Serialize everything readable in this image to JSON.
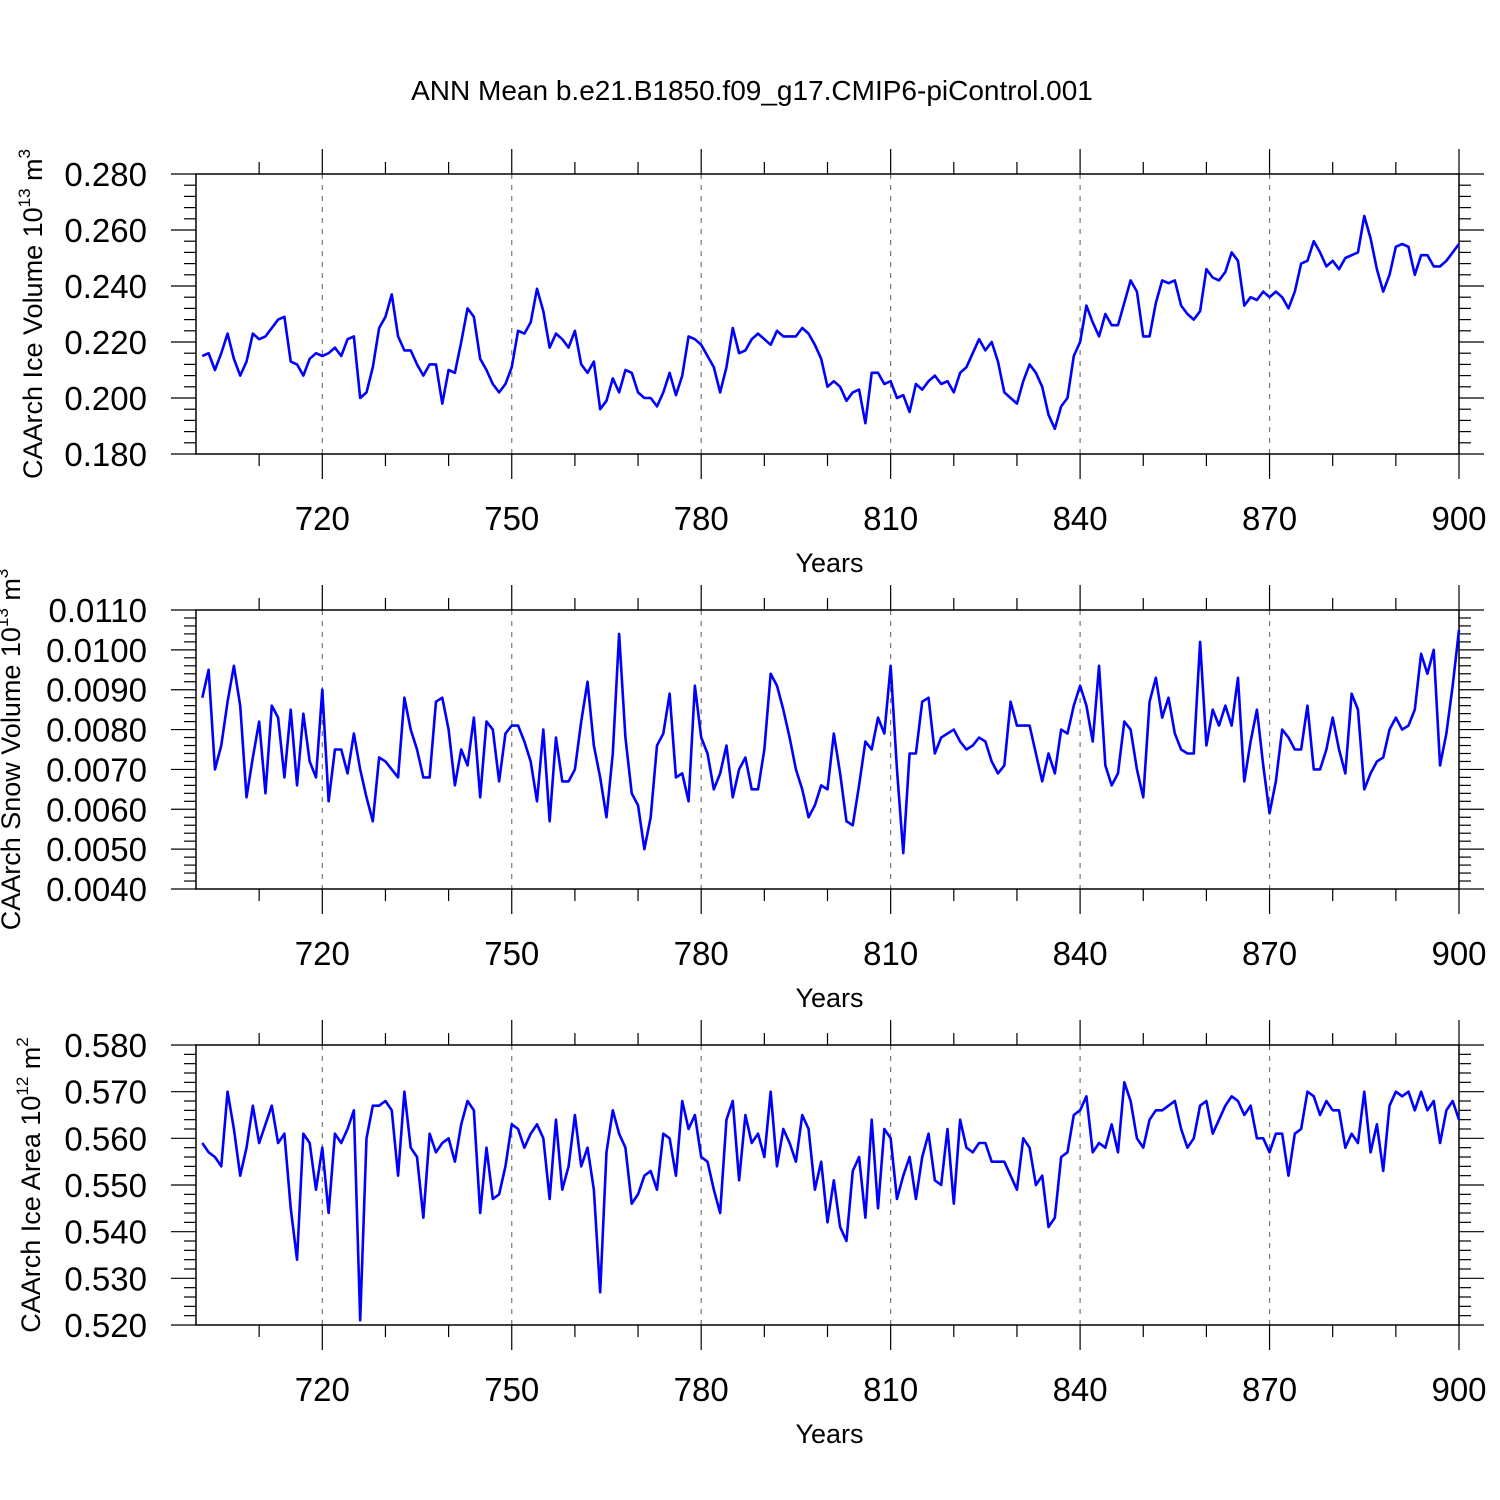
{
  "figure": {
    "title": "ANN Mean b.e21.B1850.f09_g17.CMIP6-piControl.001",
    "line_color": "#0000ff"
  },
  "chart_data": [
    {
      "type": "line",
      "id": "ice-volume",
      "ylabel": {
        "text": "CAArch Ice Volume 10",
        "exp": "13",
        "unit": " m",
        "unit_exp": "3"
      },
      "xlabel": "Years",
      "xlim": [
        700,
        900
      ],
      "ylim": [
        0.18,
        0.28
      ],
      "xticks": [
        720,
        750,
        780,
        810,
        840,
        870,
        900
      ],
      "xtick_labels": [
        "720",
        "750",
        "780",
        "810",
        "840",
        "870",
        "900"
      ],
      "yticks": [
        0.18,
        0.2,
        0.22,
        0.24,
        0.26,
        0.28
      ],
      "ytick_labels": [
        "0.180",
        "0.200",
        "0.220",
        "0.240",
        "0.260",
        "0.280"
      ],
      "grid_x": true,
      "x_start": 701,
      "values": [
        0.215,
        0.216,
        0.21,
        0.216,
        0.223,
        0.214,
        0.208,
        0.213,
        0.223,
        0.221,
        0.222,
        0.225,
        0.228,
        0.229,
        0.213,
        0.212,
        0.208,
        0.214,
        0.216,
        0.215,
        0.216,
        0.218,
        0.215,
        0.221,
        0.222,
        0.2,
        0.202,
        0.211,
        0.225,
        0.229,
        0.237,
        0.222,
        0.217,
        0.217,
        0.212,
        0.208,
        0.212,
        0.212,
        0.198,
        0.21,
        0.209,
        0.22,
        0.232,
        0.229,
        0.214,
        0.21,
        0.205,
        0.202,
        0.205,
        0.211,
        0.224,
        0.223,
        0.227,
        0.239,
        0.231,
        0.218,
        0.223,
        0.221,
        0.218,
        0.224,
        0.212,
        0.209,
        0.213,
        0.196,
        0.199,
        0.207,
        0.202,
        0.21,
        0.209,
        0.202,
        0.2,
        0.2,
        0.197,
        0.202,
        0.209,
        0.201,
        0.208,
        0.222,
        0.221,
        0.219,
        0.215,
        0.211,
        0.202,
        0.211,
        0.225,
        0.216,
        0.217,
        0.221,
        0.223,
        0.221,
        0.219,
        0.224,
        0.222,
        0.222,
        0.222,
        0.225,
        0.223,
        0.219,
        0.214,
        0.204,
        0.206,
        0.204,
        0.199,
        0.202,
        0.203,
        0.191,
        0.209,
        0.209,
        0.205,
        0.206,
        0.2,
        0.201,
        0.195,
        0.205,
        0.203,
        0.206,
        0.208,
        0.205,
        0.206,
        0.202,
        0.209,
        0.211,
        0.216,
        0.221,
        0.217,
        0.22,
        0.213,
        0.202,
        0.2,
        0.198,
        0.206,
        0.212,
        0.209,
        0.204,
        0.194,
        0.189,
        0.197,
        0.2,
        0.215,
        0.22,
        0.233,
        0.227,
        0.222,
        0.23,
        0.226,
        0.226,
        0.234,
        0.242,
        0.238,
        0.222,
        0.222,
        0.234,
        0.242,
        0.241,
        0.242,
        0.233,
        0.23,
        0.228,
        0.231,
        0.246,
        0.243,
        0.242,
        0.245,
        0.252,
        0.249,
        0.233,
        0.236,
        0.235,
        0.238,
        0.236,
        0.238,
        0.236,
        0.232,
        0.238,
        0.248,
        0.249,
        0.256,
        0.252,
        0.247,
        0.249,
        0.246,
        0.25,
        0.251,
        0.252,
        0.265,
        0.257,
        0.246,
        0.238,
        0.244,
        0.254,
        0.255,
        0.254,
        0.244,
        0.251,
        0.251,
        0.247,
        0.247,
        0.249,
        0.252,
        0.255
      ]
    },
    {
      "type": "line",
      "id": "snow-volume",
      "ylabel": {
        "text": "CAArch Snow Volume 10",
        "exp": "13",
        "unit": " m",
        "unit_exp": "3"
      },
      "xlabel": "Years",
      "xlim": [
        700,
        900
      ],
      "ylim": [
        0.004,
        0.011
      ],
      "xticks": [
        720,
        750,
        780,
        810,
        840,
        870,
        900
      ],
      "xtick_labels": [
        "720",
        "750",
        "780",
        "810",
        "840",
        "870",
        "900"
      ],
      "yticks": [
        0.004,
        0.005,
        0.006,
        0.007,
        0.008,
        0.009,
        0.01,
        0.011
      ],
      "ytick_labels": [
        "0.0040",
        "0.0050",
        "0.0060",
        "0.0070",
        "0.0080",
        "0.0090",
        "0.0100",
        "0.0110"
      ],
      "grid_x": true,
      "x_start": 701,
      "values": [
        0.0088,
        0.0095,
        0.007,
        0.0076,
        0.0087,
        0.0096,
        0.0086,
        0.0063,
        0.0073,
        0.0082,
        0.0064,
        0.0086,
        0.0083,
        0.0068,
        0.0085,
        0.0066,
        0.0084,
        0.0072,
        0.0068,
        0.009,
        0.0062,
        0.0075,
        0.0075,
        0.0069,
        0.0079,
        0.007,
        0.0063,
        0.0057,
        0.0073,
        0.0072,
        0.007,
        0.0068,
        0.0088,
        0.008,
        0.0075,
        0.0068,
        0.0068,
        0.0087,
        0.0088,
        0.008,
        0.0066,
        0.0075,
        0.0071,
        0.0083,
        0.0063,
        0.0082,
        0.008,
        0.0067,
        0.0079,
        0.0081,
        0.0081,
        0.0077,
        0.0072,
        0.0062,
        0.008,
        0.0057,
        0.0078,
        0.0067,
        0.0067,
        0.007,
        0.0082,
        0.0092,
        0.0076,
        0.0068,
        0.0058,
        0.0074,
        0.0104,
        0.0078,
        0.0064,
        0.0061,
        0.005,
        0.0058,
        0.0076,
        0.0079,
        0.0089,
        0.0068,
        0.0069,
        0.0062,
        0.0091,
        0.0078,
        0.0074,
        0.0065,
        0.0069,
        0.0076,
        0.0063,
        0.007,
        0.0073,
        0.0065,
        0.0065,
        0.0075,
        0.0094,
        0.0091,
        0.0085,
        0.0078,
        0.007,
        0.0065,
        0.0058,
        0.0061,
        0.0066,
        0.0065,
        0.0079,
        0.0069,
        0.0057,
        0.0056,
        0.0066,
        0.0077,
        0.0075,
        0.0083,
        0.0079,
        0.0096,
        0.007,
        0.0049,
        0.0074,
        0.0074,
        0.0087,
        0.0088,
        0.0074,
        0.0078,
        0.0079,
        0.008,
        0.0077,
        0.0075,
        0.0076,
        0.0078,
        0.0077,
        0.0072,
        0.0069,
        0.0071,
        0.0087,
        0.0081,
        0.0081,
        0.0081,
        0.0074,
        0.0067,
        0.0074,
        0.0069,
        0.008,
        0.0079,
        0.0086,
        0.0091,
        0.0086,
        0.0077,
        0.0096,
        0.0071,
        0.0066,
        0.0069,
        0.0082,
        0.008,
        0.007,
        0.0063,
        0.0087,
        0.0093,
        0.0083,
        0.0088,
        0.0079,
        0.0075,
        0.0074,
        0.0074,
        0.0102,
        0.0076,
        0.0085,
        0.0081,
        0.0086,
        0.0081,
        0.0093,
        0.0067,
        0.0077,
        0.0085,
        0.0071,
        0.0059,
        0.0067,
        0.008,
        0.0078,
        0.0075,
        0.0075,
        0.0086,
        0.007,
        0.007,
        0.0075,
        0.0083,
        0.0075,
        0.0069,
        0.0089,
        0.0085,
        0.0065,
        0.0069,
        0.0072,
        0.0073,
        0.008,
        0.0083,
        0.008,
        0.0081,
        0.0085,
        0.0099,
        0.0094,
        0.01,
        0.0071,
        0.0079,
        0.0091,
        0.0105
      ]
    },
    {
      "type": "line",
      "id": "ice-area",
      "ylabel": {
        "text": "CAArch Ice Area 10",
        "exp": "12",
        "unit": " m",
        "unit_exp": "2"
      },
      "xlabel": "Years",
      "xlim": [
        700,
        900
      ],
      "ylim": [
        0.52,
        0.58
      ],
      "xticks": [
        720,
        750,
        780,
        810,
        840,
        870,
        900
      ],
      "xtick_labels": [
        "720",
        "750",
        "780",
        "810",
        "840",
        "870",
        "900"
      ],
      "yticks": [
        0.52,
        0.53,
        0.54,
        0.55,
        0.56,
        0.57,
        0.58
      ],
      "ytick_labels": [
        "0.520",
        "0.530",
        "0.540",
        "0.550",
        "0.560",
        "0.570",
        "0.580"
      ],
      "grid_x": true,
      "x_start": 701,
      "values": [
        0.559,
        0.557,
        0.556,
        0.554,
        0.57,
        0.562,
        0.552,
        0.558,
        0.567,
        0.559,
        0.563,
        0.567,
        0.559,
        0.561,
        0.545,
        0.534,
        0.561,
        0.559,
        0.549,
        0.558,
        0.544,
        0.561,
        0.559,
        0.562,
        0.566,
        0.521,
        0.56,
        0.567,
        0.567,
        0.568,
        0.566,
        0.552,
        0.57,
        0.558,
        0.556,
        0.543,
        0.561,
        0.557,
        0.559,
        0.56,
        0.555,
        0.563,
        0.568,
        0.566,
        0.544,
        0.558,
        0.547,
        0.548,
        0.554,
        0.563,
        0.562,
        0.558,
        0.561,
        0.563,
        0.56,
        0.547,
        0.564,
        0.549,
        0.554,
        0.565,
        0.554,
        0.558,
        0.549,
        0.527,
        0.557,
        0.566,
        0.561,
        0.558,
        0.546,
        0.548,
        0.552,
        0.553,
        0.549,
        0.561,
        0.56,
        0.552,
        0.568,
        0.562,
        0.565,
        0.556,
        0.555,
        0.549,
        0.544,
        0.564,
        0.568,
        0.551,
        0.565,
        0.559,
        0.561,
        0.556,
        0.57,
        0.554,
        0.562,
        0.559,
        0.555,
        0.565,
        0.562,
        0.549,
        0.555,
        0.542,
        0.551,
        0.541,
        0.538,
        0.553,
        0.556,
        0.543,
        0.564,
        0.545,
        0.562,
        0.56,
        0.547,
        0.552,
        0.556,
        0.547,
        0.556,
        0.561,
        0.551,
        0.55,
        0.562,
        0.546,
        0.564,
        0.558,
        0.557,
        0.559,
        0.559,
        0.555,
        0.555,
        0.555,
        0.552,
        0.549,
        0.56,
        0.558,
        0.55,
        0.552,
        0.541,
        0.543,
        0.556,
        0.557,
        0.565,
        0.566,
        0.569,
        0.557,
        0.559,
        0.558,
        0.563,
        0.557,
        0.572,
        0.568,
        0.56,
        0.558,
        0.564,
        0.566,
        0.566,
        0.567,
        0.568,
        0.562,
        0.558,
        0.56,
        0.567,
        0.568,
        0.561,
        0.564,
        0.567,
        0.569,
        0.568,
        0.565,
        0.567,
        0.56,
        0.56,
        0.557,
        0.561,
        0.561,
        0.552,
        0.561,
        0.562,
        0.57,
        0.569,
        0.565,
        0.568,
        0.566,
        0.566,
        0.558,
        0.561,
        0.559,
        0.57,
        0.557,
        0.563,
        0.553,
        0.567,
        0.57,
        0.569,
        0.57,
        0.566,
        0.57,
        0.566,
        0.568,
        0.559,
        0.566,
        0.568,
        0.564
      ]
    }
  ]
}
